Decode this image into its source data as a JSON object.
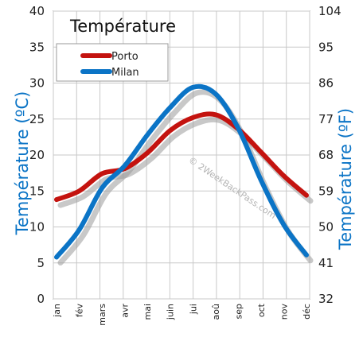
{
  "chart_data": {
    "type": "line",
    "title": "Température",
    "categories": [
      "jan",
      "fév",
      "mars",
      "avr",
      "mai",
      "juin",
      "jui",
      "aoû",
      "sep",
      "oct",
      "nov",
      "déc"
    ],
    "series": [
      {
        "name": "Porto",
        "color": "#c4130f",
        "values": [
          13.8,
          15.0,
          17.4,
          18.1,
          20.3,
          23.4,
          25.2,
          25.6,
          23.6,
          20.4,
          17.1,
          14.4
        ]
      },
      {
        "name": "Milan",
        "color": "#0b74c6",
        "values": [
          5.8,
          9.6,
          15.4,
          18.5,
          22.8,
          26.6,
          29.4,
          28.5,
          23.7,
          16.5,
          10.3,
          6.1
        ]
      }
    ],
    "ylabel": "Température  (ºC)",
    "ylabel_right": "Température  (ºF)",
    "ylim": [
      0,
      40
    ],
    "yticks": [
      "0",
      "5",
      "10",
      "15",
      "20",
      "25",
      "30",
      "35",
      "40"
    ],
    "ylim_right": [
      32,
      104
    ],
    "yticks_right": [
      "32",
      "41",
      "50",
      "59",
      "68",
      "77",
      "86",
      "95",
      "104"
    ],
    "grid": true,
    "legend_position": "top-left",
    "watermark": "© 2WeekBackPass.com"
  }
}
